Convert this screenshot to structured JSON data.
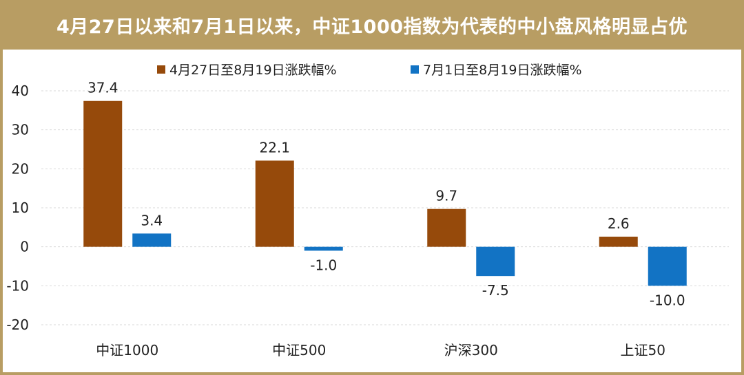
{
  "title": "4月27日以来和7月1日以来，中证1000指数为代表的中小盘风格明显占优",
  "colors": {
    "frame": "#b89d63",
    "series_1": "#964a0b",
    "series_2": "#1273c4",
    "gridline": "#d9d9d9"
  },
  "chart_data": {
    "type": "bar",
    "categories": [
      "中证1000",
      "中证500",
      "沪深300",
      "上证50"
    ],
    "series": [
      {
        "name": "4月27日至8月19日涨跌幅%",
        "values": [
          37.4,
          22.1,
          9.7,
          2.6
        ],
        "labels": [
          "37.4",
          "22.1",
          "9.7",
          "2.6"
        ]
      },
      {
        "name": "7月1日至8月19日涨跌幅%",
        "values": [
          3.4,
          -1.0,
          -7.5,
          -10.0
        ],
        "labels": [
          "3.4",
          "-1.0",
          "-7.5",
          "-10.0"
        ]
      }
    ],
    "yticks": [
      40,
      30,
      20,
      10,
      0,
      -10,
      -20
    ],
    "ylim": [
      -20,
      40
    ],
    "grid": true,
    "legend_position": "top"
  }
}
